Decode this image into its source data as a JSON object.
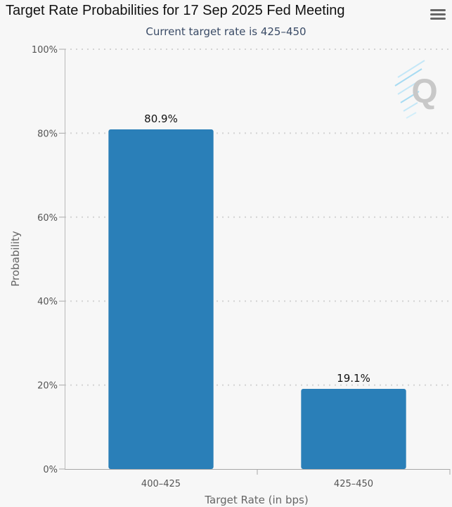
{
  "header": {
    "title": "Target Rate Probabilities for 17 Sep 2025 Fed Meeting",
    "subtitle": "Current target rate is 425–450",
    "menu_icon": "hamburger-menu-icon"
  },
  "watermark": {
    "icon": "q-logo-icon",
    "letter": "Q"
  },
  "colors": {
    "bar": "#2a7fb8",
    "background": "#f7f7f7",
    "grid": "#d3d3d3",
    "axis": "#a8a8a8"
  },
  "chart_data": {
    "type": "bar",
    "title": "Target Rate Probabilities for 17 Sep 2025 Fed Meeting",
    "subtitle": "Current target rate is 425–450",
    "categories": [
      "400–425",
      "425–450"
    ],
    "values": [
      80.9,
      19.1
    ],
    "data_labels": [
      "80.9%",
      "19.1%"
    ],
    "xlabel": "Target Rate (in bps)",
    "ylabel": "Probability",
    "ylim": [
      0,
      100
    ],
    "yticks": [
      0,
      20,
      40,
      60,
      80,
      100
    ],
    "ytick_labels": [
      "0%",
      "20%",
      "40%",
      "60%",
      "80%",
      "100%"
    ],
    "grid": true,
    "legend": "none"
  }
}
